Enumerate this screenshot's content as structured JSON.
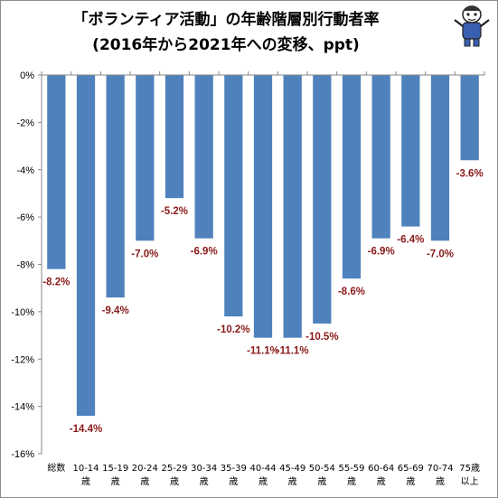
{
  "chart_data": {
    "type": "bar",
    "title": "「ボランティア活動」の年齢階層別行動者率",
    "subtitle": "(2016年から2021年への変移、ppt)",
    "categories": [
      [
        "総数"
      ],
      [
        "10-14",
        "歳"
      ],
      [
        "15-19",
        "歳"
      ],
      [
        "20-24",
        "歳"
      ],
      [
        "25-29",
        "歳"
      ],
      [
        "30-34",
        "歳"
      ],
      [
        "35-39",
        "歳"
      ],
      [
        "40-44",
        "歳"
      ],
      [
        "45-49",
        "歳"
      ],
      [
        "50-54",
        "歳"
      ],
      [
        "55-59",
        "歳"
      ],
      [
        "60-64",
        "歳"
      ],
      [
        "65-69",
        "歳"
      ],
      [
        "70-74",
        "歳"
      ],
      [
        "75歳",
        "以上"
      ]
    ],
    "values": [
      -8.2,
      -14.4,
      -9.4,
      -7.0,
      -5.2,
      -6.9,
      -10.2,
      -11.1,
      -11.1,
      -10.5,
      -8.6,
      -6.9,
      -6.4,
      -7.0,
      -3.6
    ],
    "data_labels": [
      "-8.2%",
      "-14.4%",
      "-9.4%",
      "-7.0%",
      "-5.2%",
      "-6.9%",
      "-10.2%",
      "-11.1%",
      "-11.1%",
      "-10.5%",
      "-8.6%",
      "-6.9%",
      "-6.4%",
      "-7.0%",
      "-3.6%"
    ],
    "yticks": [
      "0%",
      "-2%",
      "-4%",
      "-6%",
      "-8%",
      "-10%",
      "-12%",
      "-14%",
      "-16%"
    ],
    "ylim": [
      -16,
      0
    ],
    "xlabel": "",
    "ylabel": "",
    "grid": false,
    "legend": "none",
    "colors": {
      "bar": "#4f81bd",
      "data_label": "#8b1a1a",
      "axis": "#868686"
    }
  },
  "mascot": {
    "icon": "mascot-character-icon"
  }
}
